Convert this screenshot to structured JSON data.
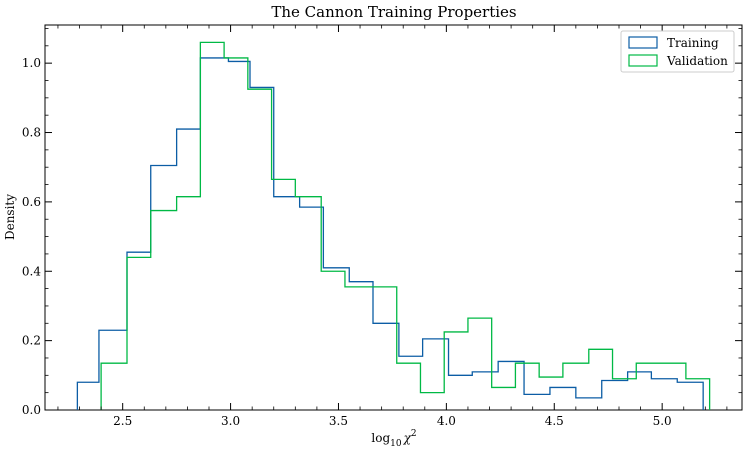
{
  "chart_data": {
    "type": "histogram",
    "title": "The Cannon Training Properties",
    "xlabel": "log",
    "xlabel_sub": "10",
    "xlabel_var": "χ",
    "xlabel_sup": "2",
    "ylabel": "Density",
    "xlim": [
      2.14,
      5.37
    ],
    "ylim": [
      0,
      1.11
    ],
    "x_ticks": [
      2.5,
      3.0,
      3.5,
      4.0,
      4.5,
      5.0
    ],
    "x_tick_labels": [
      "2.5",
      "3.0",
      "3.5",
      "4.0",
      "4.5",
      "5.0"
    ],
    "y_ticks": [
      0.0,
      0.2,
      0.4,
      0.6,
      0.8,
      1.0
    ],
    "y_tick_labels": [
      "0.0",
      "0.2",
      "0.4",
      "0.6",
      "0.8",
      "1.0"
    ],
    "legend_position": "top-right",
    "series": [
      {
        "name": "Training",
        "color": "#0C5DA5",
        "bin_edges": [
          2.29,
          2.39,
          2.52,
          2.63,
          2.75,
          2.86,
          2.99,
          3.09,
          3.2,
          3.32,
          3.43,
          3.55,
          3.66,
          3.78,
          3.89,
          4.01,
          4.12,
          4.24,
          4.36,
          4.48,
          4.6,
          4.72,
          4.84,
          4.95,
          5.07,
          5.19
        ],
        "values": [
          0.08,
          0.23,
          0.455,
          0.705,
          0.81,
          1.015,
          1.005,
          0.93,
          0.615,
          0.585,
          0.41,
          0.37,
          0.25,
          0.155,
          0.205,
          0.1,
          0.11,
          0.14,
          0.045,
          0.065,
          0.035,
          0.085,
          0.11,
          0.09,
          0.08
        ]
      },
      {
        "name": "Validation",
        "color": "#00B945",
        "bin_edges": [
          2.4,
          2.52,
          2.63,
          2.75,
          2.86,
          2.97,
          3.08,
          3.19,
          3.3,
          3.42,
          3.53,
          3.65,
          3.77,
          3.88,
          3.99,
          4.1,
          4.21,
          4.32,
          4.43,
          4.54,
          4.66,
          4.77,
          4.88,
          4.99,
          5.11,
          5.22
        ],
        "values": [
          0.135,
          0.44,
          0.575,
          0.615,
          1.06,
          1.015,
          0.925,
          0.665,
          0.615,
          0.4,
          0.355,
          0.355,
          0.135,
          0.05,
          0.225,
          0.265,
          0.065,
          0.135,
          0.095,
          0.135,
          0.175,
          0.09,
          0.135,
          0.135,
          0.09
        ]
      }
    ]
  }
}
